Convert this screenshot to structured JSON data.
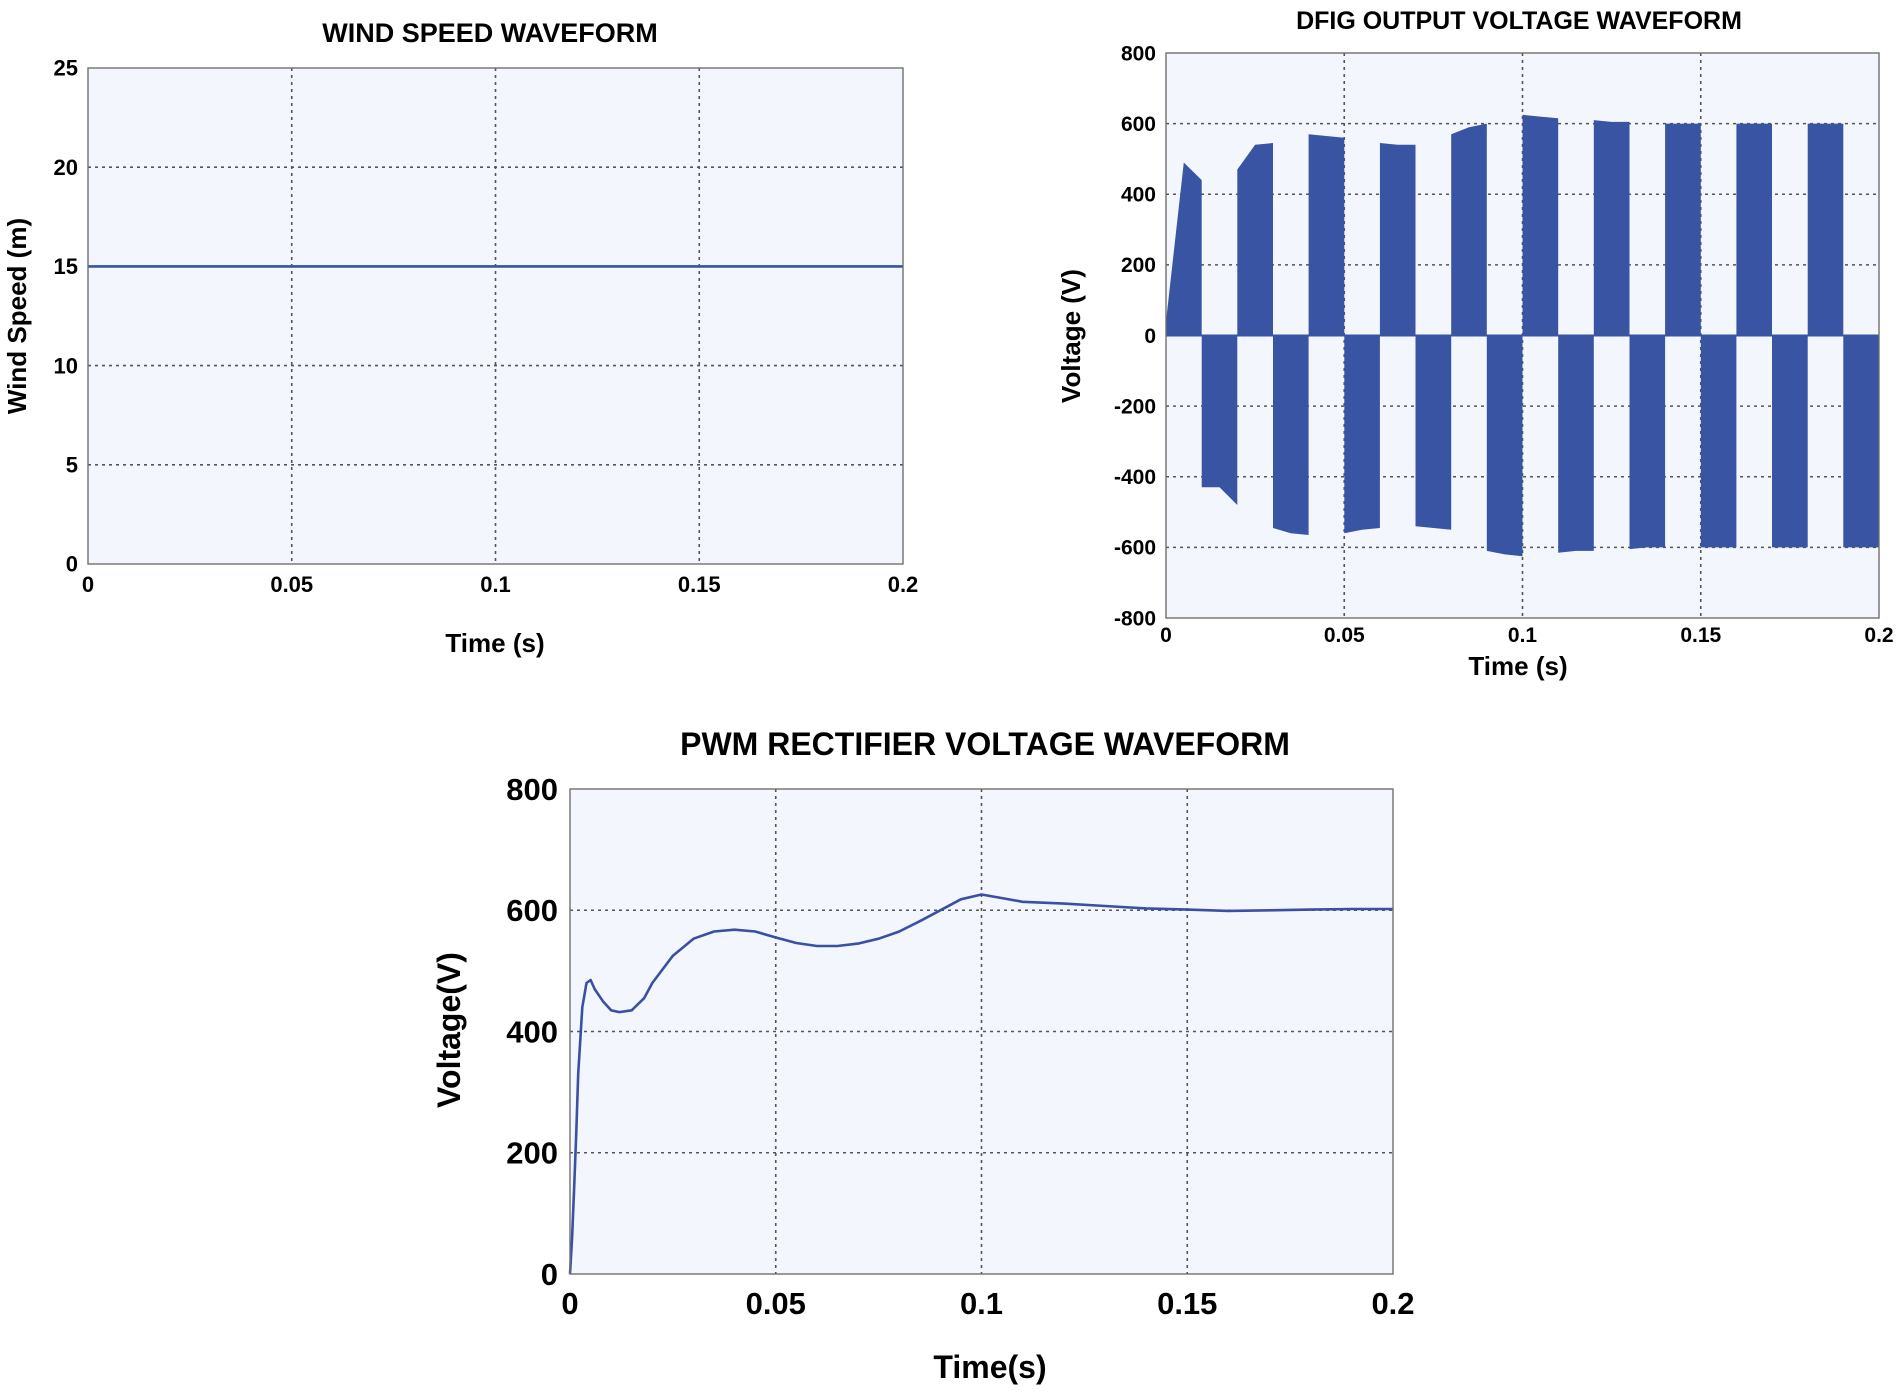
{
  "chart_data": [
    {
      "type": "line",
      "title": "WIND SPEED WAVEFORM",
      "xlabel": "Time (s)",
      "ylabel": "Wind Speed (m)",
      "xlim": [
        0,
        0.2
      ],
      "ylim": [
        0,
        25
      ],
      "x_ticks": [
        "0",
        "0.05",
        "0.1",
        "0.15",
        "0.2"
      ],
      "y_ticks": [
        "0",
        "5",
        "10",
        "15",
        "20",
        "25"
      ],
      "grid": true,
      "color": "#3a50a3",
      "series": [
        {
          "x": [
            0,
            0.2
          ],
          "y": [
            15,
            15
          ]
        }
      ]
    },
    {
      "type": "line",
      "title": "DFIG OUTPUT VOLTAGE WAVEFORM",
      "xlabel": "Time (s)",
      "ylabel": "Voltage (V)",
      "xlim": [
        0,
        0.2
      ],
      "ylim": [
        -800,
        800
      ],
      "x_ticks": [
        "0",
        "0.05",
        "0.1",
        "0.15",
        "0.2"
      ],
      "y_ticks": [
        "800",
        "600",
        "400",
        "200",
        "0",
        "-200",
        "-400",
        "-600",
        "-800"
      ],
      "grid": true,
      "color": "#3a54a4",
      "pulses": [
        {
          "t0": 0.0,
          "t1": 0.01,
          "start": 40,
          "peak": 490,
          "end": 440
        },
        {
          "t0": 0.01,
          "t1": 0.02,
          "start": -430,
          "peak": -430,
          "end": -480
        },
        {
          "t0": 0.02,
          "t1": 0.03,
          "start": 470,
          "peak": 540,
          "end": 545
        },
        {
          "t0": 0.03,
          "t1": 0.04,
          "start": -545,
          "peak": -560,
          "end": -565
        },
        {
          "t0": 0.04,
          "t1": 0.05,
          "start": 570,
          "peak": 565,
          "end": 560
        },
        {
          "t0": 0.05,
          "t1": 0.06,
          "start": -560,
          "peak": -550,
          "end": -545
        },
        {
          "t0": 0.06,
          "t1": 0.07,
          "start": 545,
          "peak": 540,
          "end": 540
        },
        {
          "t0": 0.07,
          "t1": 0.08,
          "start": -540,
          "peak": -545,
          "end": -550
        },
        {
          "t0": 0.08,
          "t1": 0.09,
          "start": 570,
          "peak": 590,
          "end": 600
        },
        {
          "t0": 0.09,
          "t1": 0.1,
          "start": -610,
          "peak": -620,
          "end": -625
        },
        {
          "t0": 0.1,
          "t1": 0.11,
          "start": 625,
          "peak": 620,
          "end": 615
        },
        {
          "t0": 0.11,
          "t1": 0.12,
          "start": -615,
          "peak": -610,
          "end": -610
        },
        {
          "t0": 0.12,
          "t1": 0.13,
          "start": 610,
          "peak": 605,
          "end": 605
        },
        {
          "t0": 0.13,
          "t1": 0.14,
          "start": -605,
          "peak": -600,
          "end": -600
        },
        {
          "t0": 0.14,
          "t1": 0.15,
          "start": 600,
          "peak": 600,
          "end": 600
        },
        {
          "t0": 0.15,
          "t1": 0.16,
          "start": -600,
          "peak": -600,
          "end": -600
        },
        {
          "t0": 0.16,
          "t1": 0.17,
          "start": 600,
          "peak": 600,
          "end": 600
        },
        {
          "t0": 0.17,
          "t1": 0.18,
          "start": -600,
          "peak": -600,
          "end": -600
        },
        {
          "t0": 0.18,
          "t1": 0.19,
          "start": 600,
          "peak": 600,
          "end": 600
        },
        {
          "t0": 0.19,
          "t1": 0.2,
          "start": -600,
          "peak": -600,
          "end": -600
        }
      ]
    },
    {
      "type": "line",
      "title": "PWM RECTIFIER VOLTAGE WAVEFORM",
      "xlabel": "Time(s)",
      "ylabel": "Voltage(V)",
      "xlim": [
        0,
        0.2
      ],
      "ylim": [
        0,
        800
      ],
      "x_ticks": [
        "0",
        "0.05",
        "0.1",
        "0.15",
        "0.2"
      ],
      "y_ticks": [
        "0",
        "200",
        "400",
        "600",
        "800"
      ],
      "grid": true,
      "color": "#3a50a3",
      "series": [
        {
          "x": [
            0,
            0.0005,
            0.001,
            0.0015,
            0.002,
            0.003,
            0.004,
            0.005,
            0.006,
            0.008,
            0.01,
            0.012,
            0.015,
            0.018,
            0.02,
            0.025,
            0.03,
            0.035,
            0.04,
            0.045,
            0.05,
            0.055,
            0.06,
            0.065,
            0.07,
            0.075,
            0.08,
            0.085,
            0.09,
            0.095,
            0.1,
            0.105,
            0.11,
            0.12,
            0.13,
            0.14,
            0.15,
            0.16,
            0.17,
            0.18,
            0.19,
            0.2
          ],
          "y": [
            0,
            60,
            140,
            230,
            330,
            440,
            480,
            485,
            470,
            450,
            435,
            432,
            435,
            455,
            480,
            525,
            553,
            565,
            568,
            565,
            555,
            546,
            541,
            541,
            545,
            553,
            565,
            582,
            600,
            618,
            626,
            620,
            614,
            611,
            607,
            603,
            601,
            599,
            600,
            601,
            602,
            602
          ]
        }
      ]
    }
  ]
}
